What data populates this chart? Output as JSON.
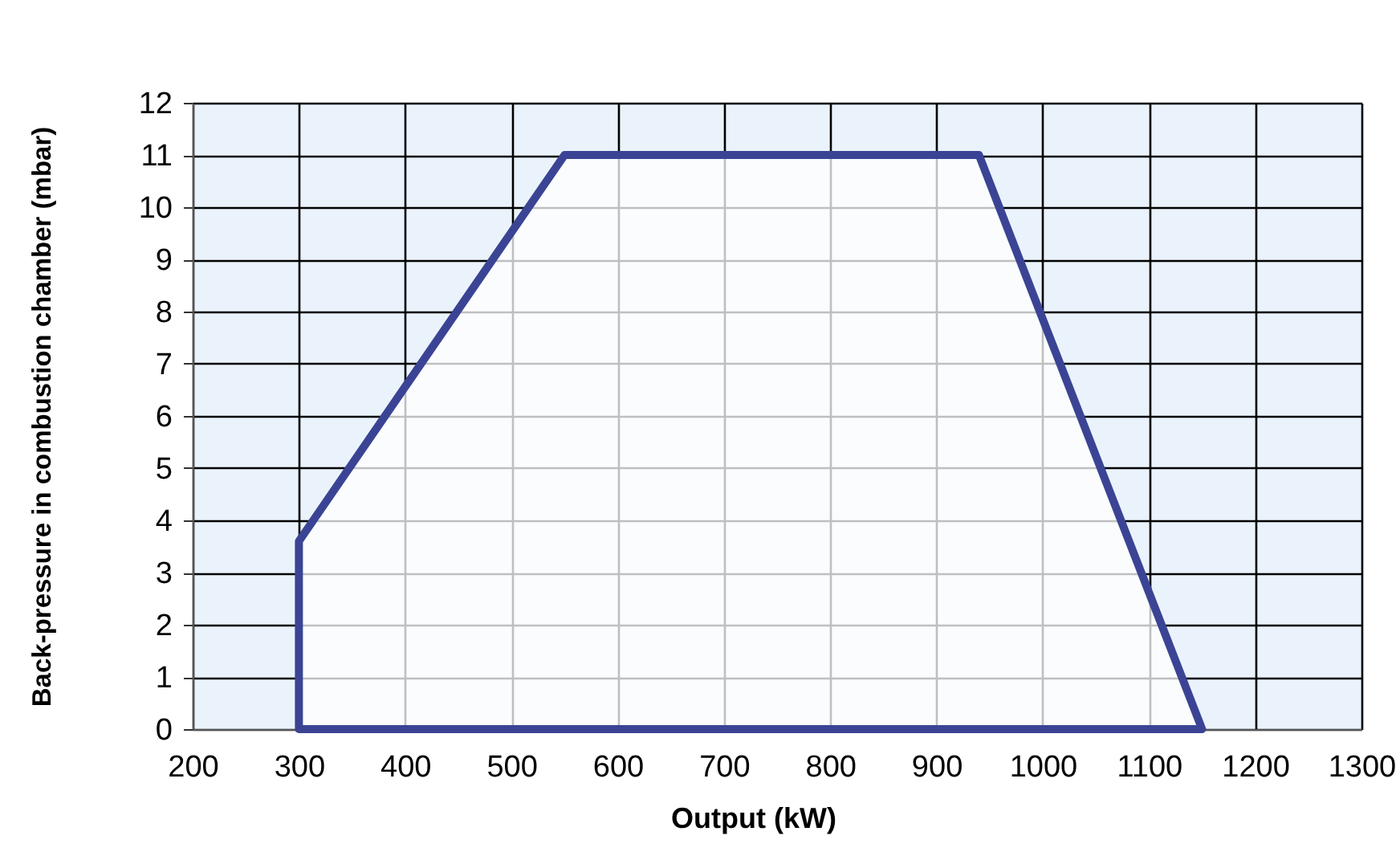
{
  "chart_data": {
    "type": "area",
    "xlabel": "Output (kW)",
    "ylabel": "Back-pressure in combustion chamber (mbar)",
    "x": [
      300,
      550,
      940,
      1150
    ],
    "values": [
      3.6,
      11,
      11,
      0
    ],
    "color": "#3b4494",
    "xlim": [
      200,
      1300
    ],
    "ylim": [
      0,
      12
    ],
    "xticks": [
      200,
      300,
      400,
      500,
      600,
      700,
      800,
      900,
      1000,
      1100,
      1200,
      1300
    ],
    "yticks": [
      0,
      1,
      2,
      3,
      4,
      5,
      6,
      7,
      8,
      9,
      10,
      11,
      12
    ],
    "grid": true
  }
}
